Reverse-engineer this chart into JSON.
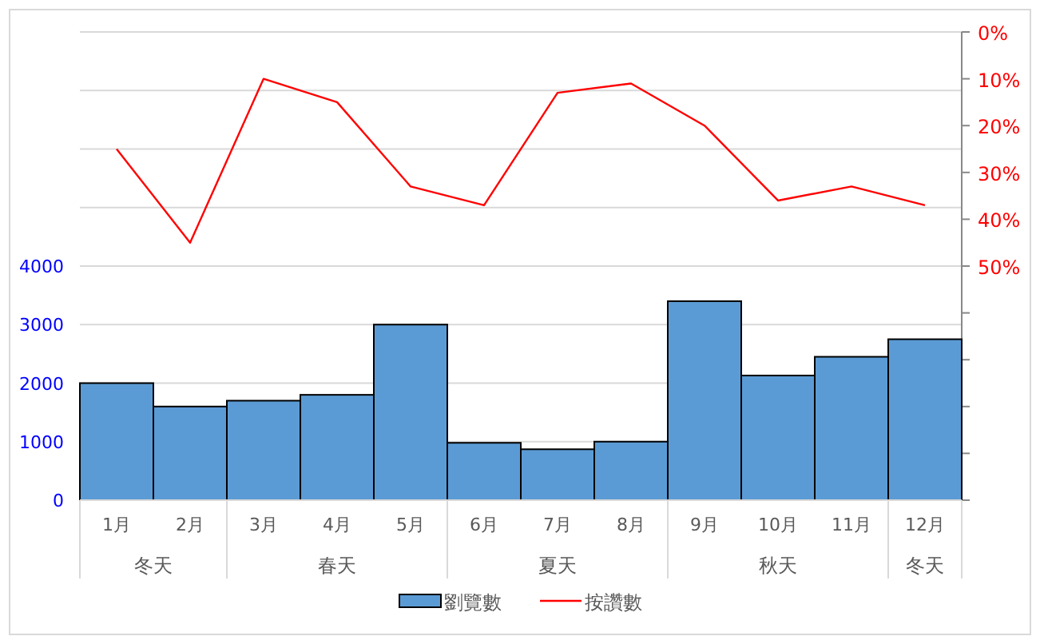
{
  "chart_data": {
    "type": "bar",
    "categories": [
      "1月",
      "2月",
      "3月",
      "4月",
      "5月",
      "6月",
      "7月",
      "8月",
      "9月",
      "10月",
      "11月",
      "12月"
    ],
    "series": [
      {
        "name": "劉覽數",
        "color": "#5b9bd5",
        "values": [
          2000,
          1600,
          1700,
          1800,
          3000,
          980,
          870,
          1000,
          3400,
          2130,
          2450,
          2750
        ]
      },
      {
        "name": "按讚數",
        "type": "line",
        "axis": "y2",
        "color": "#ff0000",
        "values": [
          25,
          45,
          10,
          15,
          33,
          37,
          13,
          11,
          20,
          36,
          33,
          37
        ]
      }
    ],
    "ylim": [
      0,
      8000
    ],
    "yticks": [
      0,
      1000,
      2000,
      3000,
      4000,
      {
        "value": 5000,
        "label": null
      },
      {
        "value": 6000,
        "label": null
      },
      {
        "value": 7000,
        "label": null
      },
      {
        "value": 8000,
        "label": null
      }
    ],
    "y2lim": [
      100,
      0
    ],
    "y2ticks": [
      {
        "value": 0,
        "label": "0%"
      },
      {
        "value": 10,
        "label": "10%"
      },
      {
        "value": 20,
        "label": "20%"
      },
      {
        "value": 30,
        "label": "30%"
      },
      {
        "value": 40,
        "label": "40%"
      },
      {
        "value": 50,
        "label": "50%"
      },
      {
        "value": 60,
        "label": null
      },
      {
        "value": 70,
        "label": null
      },
      {
        "value": 80,
        "label": null
      },
      {
        "value": 90,
        "label": null
      },
      {
        "value": 100,
        "label": null
      }
    ],
    "annotations": [
      "冬天",
      "春天",
      "夏天",
      "秋天",
      "冬天"
    ],
    "grid": "y",
    "legend": "bottom"
  }
}
